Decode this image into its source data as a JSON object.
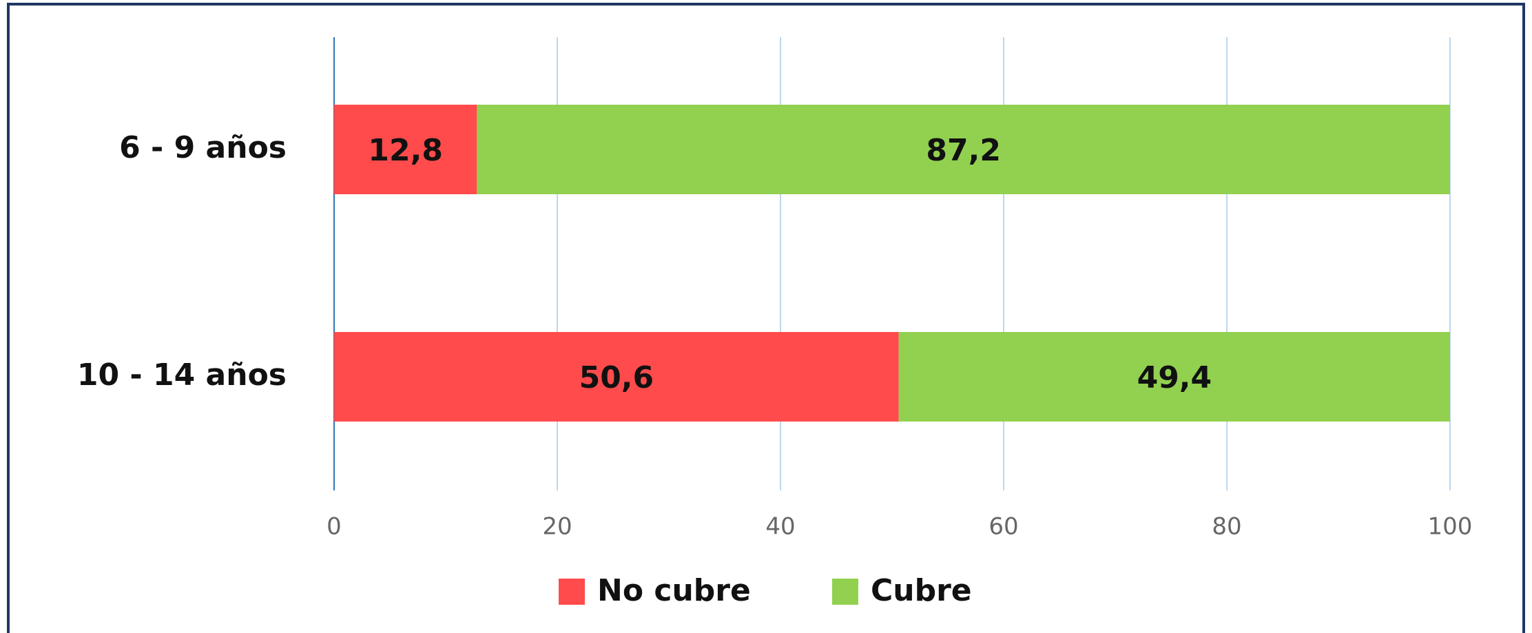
{
  "chart_data": {
    "type": "stacked_barh",
    "categories": [
      "6 - 9 años",
      "10 - 14 años"
    ],
    "series": [
      {
        "name": "No cubre",
        "color": "#FF4B4B",
        "values": [
          12.8,
          50.6
        ],
        "value_labels": [
          "12,8",
          "50,6"
        ]
      },
      {
        "name": "Cubre",
        "color": "#92D050",
        "values": [
          87.2,
          49.4
        ],
        "value_labels": [
          "87,2",
          "49,4"
        ]
      }
    ],
    "xlim": [
      0,
      100
    ],
    "xticks": [
      0,
      20,
      40,
      60,
      80,
      100
    ],
    "grid": true,
    "legend": "bottom"
  }
}
